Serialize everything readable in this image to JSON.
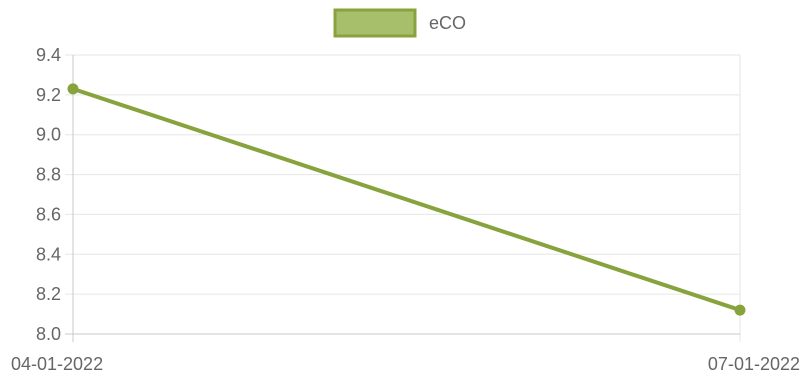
{
  "chart_data": {
    "type": "line",
    "title": "",
    "xlabel": "",
    "ylabel": "",
    "categories": [
      "04-01-2022",
      "07-01-2022"
    ],
    "series": [
      {
        "name": "eCO",
        "values": [
          9.23,
          8.12
        ],
        "color": "#88a33d",
        "fill_color": "#a7bf6b"
      }
    ],
    "ylim": [
      8.0,
      9.4
    ],
    "yticks": [
      "8.0",
      "8.2",
      "8.4",
      "8.6",
      "8.8",
      "9.0",
      "9.2",
      "9.4"
    ],
    "grid": true,
    "legend": "top-center"
  }
}
